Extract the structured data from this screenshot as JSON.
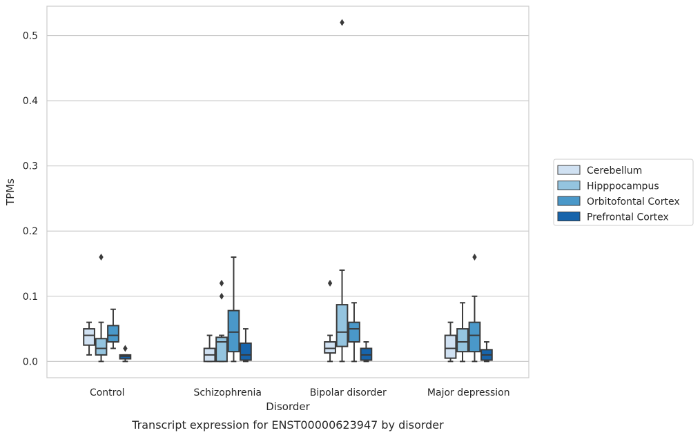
{
  "chart_data": {
    "type": "box",
    "xlabel": "Disorder",
    "ylabel": "TPMs",
    "caption": "Transcript expression for ENST00000623947 by disorder",
    "ylim": [
      -0.025,
      0.545
    ],
    "yticks": [
      0.0,
      0.1,
      0.2,
      0.3,
      0.4,
      0.5
    ],
    "ytick_labels": [
      "0.0",
      "0.1",
      "0.2",
      "0.3",
      "0.4",
      "0.5"
    ],
    "grid": true,
    "legend_position": "right",
    "categories": [
      "Control",
      "Schizophrenia",
      "Bipolar disorder",
      "Major depression"
    ],
    "series": [
      {
        "name": "Cerebellum",
        "color": "#d0e1f2",
        "boxes": [
          {
            "whislo": 0.01,
            "q1": 0.025,
            "med": 0.04,
            "q3": 0.05,
            "whishi": 0.06,
            "fliers": []
          },
          {
            "whislo": 0.0,
            "q1": 0.0,
            "med": 0.01,
            "q3": 0.02,
            "whishi": 0.04,
            "fliers": []
          },
          {
            "whislo": 0.0,
            "q1": 0.013,
            "med": 0.02,
            "q3": 0.03,
            "whishi": 0.04,
            "fliers": [
              0.12
            ]
          },
          {
            "whislo": 0.0,
            "q1": 0.005,
            "med": 0.02,
            "q3": 0.04,
            "whishi": 0.06,
            "fliers": []
          }
        ]
      },
      {
        "name": "Hipppocampus",
        "color": "#94c4df",
        "boxes": [
          {
            "whislo": 0.0,
            "q1": 0.01,
            "med": 0.02,
            "q3": 0.035,
            "whishi": 0.06,
            "fliers": [
              0.16
            ]
          },
          {
            "whislo": 0.0,
            "q1": 0.0,
            "med": 0.03,
            "q3": 0.037,
            "whishi": 0.04,
            "fliers": [
              0.12,
              0.1
            ]
          },
          {
            "whislo": 0.0,
            "q1": 0.023,
            "med": 0.045,
            "q3": 0.087,
            "whishi": 0.14,
            "fliers": [
              0.52
            ]
          },
          {
            "whislo": 0.0,
            "q1": 0.015,
            "med": 0.03,
            "q3": 0.05,
            "whishi": 0.09,
            "fliers": []
          }
        ]
      },
      {
        "name": "Orbitofontal Cortex",
        "color": "#4a98c9",
        "boxes": [
          {
            "whislo": 0.02,
            "q1": 0.03,
            "med": 0.04,
            "q3": 0.055,
            "whishi": 0.08,
            "fliers": []
          },
          {
            "whislo": 0.0,
            "q1": 0.015,
            "med": 0.045,
            "q3": 0.078,
            "whishi": 0.16,
            "fliers": []
          },
          {
            "whislo": 0.0,
            "q1": 0.03,
            "med": 0.05,
            "q3": 0.06,
            "whishi": 0.09,
            "fliers": []
          },
          {
            "whislo": 0.0,
            "q1": 0.015,
            "med": 0.04,
            "q3": 0.06,
            "whishi": 0.1,
            "fliers": [
              0.16
            ]
          }
        ]
      },
      {
        "name": "Prefrontal Cortex",
        "color": "#1764ab",
        "boxes": [
          {
            "whislo": 0.0,
            "q1": 0.004,
            "med": 0.008,
            "q3": 0.01,
            "whishi": 0.01,
            "fliers": [
              0.02
            ]
          },
          {
            "whislo": 0.0,
            "q1": 0.002,
            "med": 0.01,
            "q3": 0.028,
            "whishi": 0.05,
            "fliers": []
          },
          {
            "whislo": 0.0,
            "q1": 0.002,
            "med": 0.01,
            "q3": 0.02,
            "whishi": 0.03,
            "fliers": []
          },
          {
            "whislo": 0.0,
            "q1": 0.002,
            "med": 0.01,
            "q3": 0.018,
            "whishi": 0.03,
            "fliers": []
          }
        ]
      }
    ]
  }
}
